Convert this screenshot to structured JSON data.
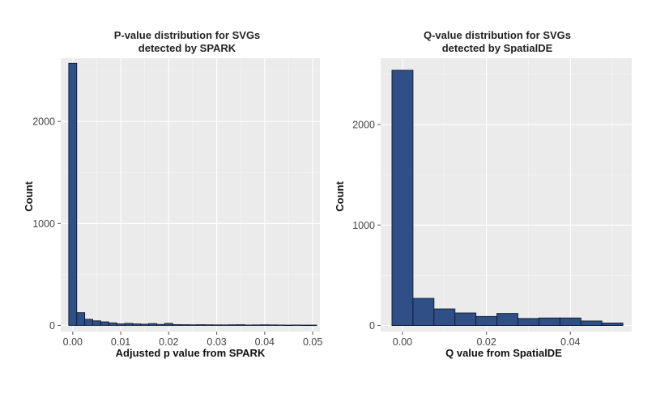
{
  "chart_data": [
    {
      "type": "bar",
      "title": "P-value distribution for SVGs\ndetected by SPARK",
      "xlabel": "Adjusted p value from SPARK",
      "ylabel": "Count",
      "xlim": [
        -0.0025,
        0.0515
      ],
      "ylim": [
        -60,
        2620
      ],
      "xticks": [
        0.0,
        0.01,
        0.02,
        0.03,
        0.04,
        0.05
      ],
      "xtick_labels": [
        "0.00",
        "0.01",
        "0.02",
        "0.03",
        "0.04",
        "0.05"
      ],
      "yticks": [
        0,
        1000,
        2000
      ],
      "ytick_labels": [
        "0",
        "1000",
        "2000"
      ],
      "grid": true,
      "bin_width": 0.001667,
      "bin_starts": [
        -0.000833,
        0.000833,
        0.0025,
        0.004167,
        0.005833,
        0.0075,
        0.009167,
        0.010833,
        0.0125,
        0.014167,
        0.015833,
        0.0175,
        0.019167,
        0.020833,
        0.0225,
        0.024167,
        0.025833,
        0.0275,
        0.029167,
        0.030833,
        0.0325,
        0.034167,
        0.035833,
        0.0375,
        0.039167,
        0.040833,
        0.0425,
        0.044167,
        0.045833,
        0.0475,
        0.049167
      ],
      "values": [
        2570,
        125,
        60,
        45,
        35,
        25,
        15,
        20,
        15,
        12,
        18,
        10,
        20,
        8,
        7,
        6,
        7,
        6,
        5,
        5,
        6,
        7,
        4,
        5,
        6,
        5,
        4,
        3,
        4,
        3,
        3
      ]
    },
    {
      "type": "bar",
      "title": "Q-value distribution for SVGs\ndetected by SpatialDE",
      "xlabel": "Q value from SpatialDE",
      "ylabel": "Count",
      "xlim": [
        -0.0052,
        0.0546
      ],
      "ylim": [
        -60,
        2660
      ],
      "xticks": [
        0.0,
        0.02,
        0.04
      ],
      "xtick_labels": [
        "0.00",
        "0.02",
        "0.04"
      ],
      "yticks": [
        0,
        1000,
        2000
      ],
      "ytick_labels": [
        "0",
        "1000",
        "2000"
      ],
      "grid": true,
      "bin_width": 0.005,
      "bin_starts": [
        -0.0025,
        0.0025,
        0.0075,
        0.0125,
        0.0175,
        0.0225,
        0.0275,
        0.0325,
        0.0375,
        0.0425,
        0.0475
      ],
      "values": [
        2540,
        270,
        165,
        125,
        90,
        120,
        70,
        75,
        75,
        45,
        25
      ]
    }
  ]
}
